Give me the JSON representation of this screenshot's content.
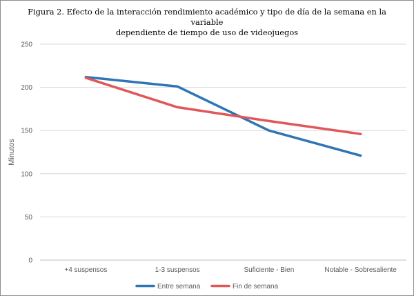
{
  "chart_data": {
    "type": "line",
    "title_line1": "Figura 2. Efecto de la interacción rendimiento académico y tipo de día de la semana en la variable",
    "title_line2": "dependiente de tiempo de uso de videojuegos",
    "xlabel": "",
    "ylabel": "Minutos",
    "categories": [
      "+4 suspensos",
      "1-3 suspensos",
      "Suficiente - Bien",
      "Notable - Sobresaliente"
    ],
    "ylim": [
      0,
      250
    ],
    "yticks": [
      0,
      50,
      100,
      150,
      200,
      250
    ],
    "grid": true,
    "legend_position": "bottom",
    "series": [
      {
        "name": "Entre semana",
        "values": [
          212,
          201,
          150,
          121
        ],
        "color": "#2e75b6"
      },
      {
        "name": "Fin de semana",
        "values": [
          211,
          177,
          161,
          146
        ],
        "color": "#e15759"
      }
    ]
  }
}
